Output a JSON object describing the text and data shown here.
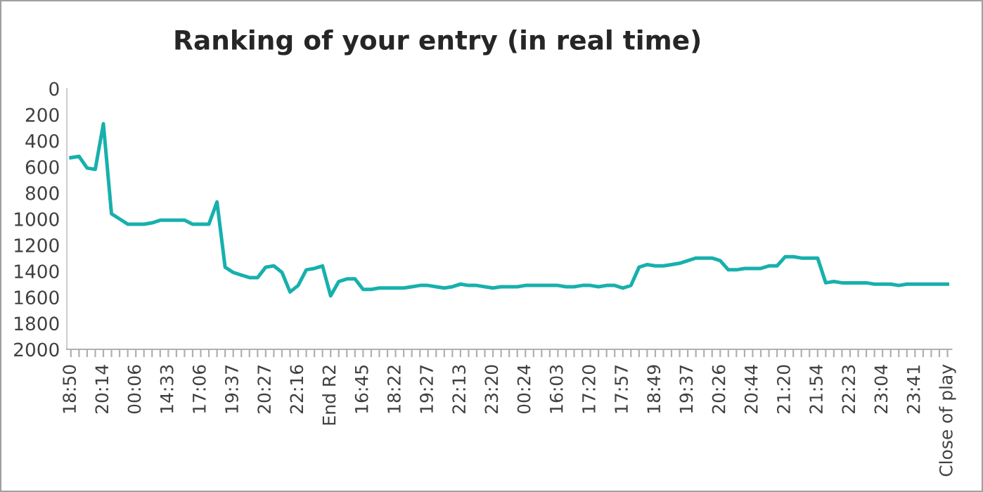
{
  "chart_data": {
    "type": "line",
    "title": "Ranking of your entry (in real time)",
    "categories": [
      "18:50",
      null,
      null,
      null,
      "20:14",
      null,
      null,
      null,
      "00:06",
      null,
      null,
      null,
      "14:33",
      null,
      null,
      null,
      "17:06",
      null,
      null,
      null,
      "19:37",
      null,
      null,
      null,
      "20:27",
      null,
      null,
      null,
      "22:16",
      null,
      null,
      null,
      "End R2",
      null,
      null,
      null,
      "16:45",
      null,
      null,
      null,
      "18:22",
      null,
      null,
      null,
      "19:27",
      null,
      null,
      null,
      "22:13",
      null,
      null,
      null,
      "23:20",
      null,
      null,
      null,
      "00:24",
      null,
      null,
      null,
      "16:03",
      null,
      null,
      null,
      "17:20",
      null,
      null,
      null,
      "17:57",
      null,
      null,
      null,
      "18:49",
      null,
      null,
      null,
      "19:37",
      null,
      null,
      null,
      "20:26",
      null,
      null,
      null,
      "20:44",
      null,
      null,
      null,
      "21:20",
      null,
      null,
      null,
      "21:54",
      null,
      null,
      null,
      "22:23",
      null,
      null,
      null,
      "23:04",
      null,
      null,
      null,
      "23:41",
      null,
      null,
      null,
      "Close of play"
    ],
    "series": [
      {
        "color": "#17b0ad",
        "values": [
          530,
          520,
          610,
          620,
          270,
          960,
          1000,
          1040,
          1040,
          1040,
          1030,
          1010,
          1010,
          1010,
          1010,
          1040,
          1040,
          1040,
          870,
          1370,
          1410,
          1430,
          1450,
          1450,
          1370,
          1360,
          1410,
          1560,
          1510,
          1390,
          1380,
          1360,
          1590,
          1480,
          1460,
          1460,
          1540,
          1540,
          1530,
          1530,
          1530,
          1530,
          1520,
          1510,
          1510,
          1520,
          1530,
          1520,
          1500,
          1510,
          1510,
          1520,
          1530,
          1520,
          1520,
          1520,
          1510,
          1510,
          1510,
          1510,
          1510,
          1520,
          1520,
          1510,
          1510,
          1520,
          1510,
          1510,
          1530,
          1510,
          1370,
          1350,
          1360,
          1360,
          1350,
          1340,
          1320,
          1300,
          1300,
          1300,
          1320,
          1390,
          1390,
          1380,
          1380,
          1380,
          1360,
          1360,
          1290,
          1290,
          1300,
          1300,
          1300,
          1490,
          1480,
          1490,
          1490,
          1490,
          1490,
          1500,
          1500,
          1500,
          1510,
          1500,
          1500,
          1500,
          1500,
          1500,
          1500
        ]
      }
    ],
    "ylim": [
      2000,
      0
    ],
    "yticks": [
      0,
      200,
      400,
      600,
      800,
      1000,
      1200,
      1400,
      1600,
      1800,
      2000
    ],
    "grid": false,
    "marker": "none",
    "line_style": "solid"
  }
}
